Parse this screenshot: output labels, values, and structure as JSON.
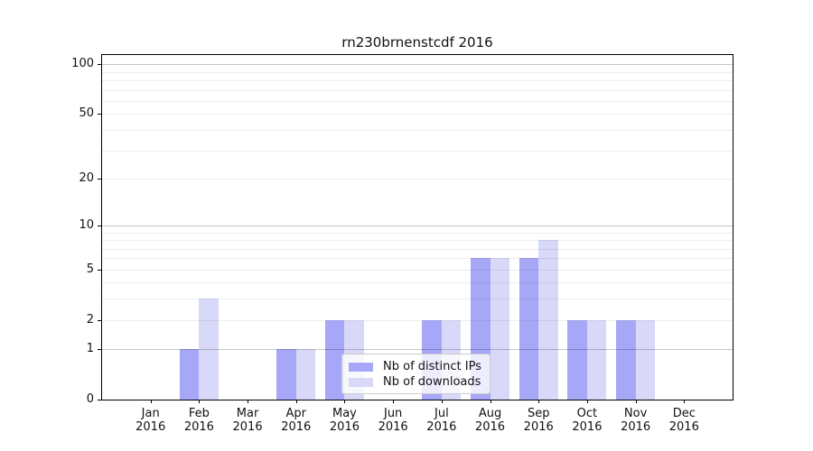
{
  "chart_data": {
    "type": "bar",
    "title": "rn230brnenstcdf 2016",
    "categories": [
      "Jan",
      "Feb",
      "Mar",
      "Apr",
      "May",
      "Jun",
      "Jul",
      "Aug",
      "Sep",
      "Oct",
      "Nov",
      "Dec"
    ],
    "category_year": "2016",
    "series": [
      {
        "name": "Nb of distinct IPs",
        "color": "#a7a7f7",
        "values": [
          0,
          1,
          0,
          1,
          2,
          0,
          2,
          6,
          6,
          2,
          2,
          0
        ]
      },
      {
        "name": "Nb of downloads",
        "color": "#d8d8f8",
        "values": [
          0,
          3,
          0,
          1,
          2,
          0,
          2,
          6,
          8,
          2,
          2,
          0
        ]
      }
    ],
    "y_scale": "log1p",
    "ylim": [
      0,
      113
    ],
    "y_ticks": [
      0,
      1,
      2,
      5,
      10,
      20,
      50,
      100
    ],
    "grid": {
      "on": true,
      "major_values": [
        1,
        10,
        100
      ],
      "minor_values": [
        2,
        3,
        4,
        5,
        6,
        7,
        8,
        9,
        20,
        30,
        40,
        50,
        60,
        70,
        80,
        90
      ]
    },
    "legend_position": "inside-bottom-center",
    "colors": {
      "axis": "#000000",
      "text": "#111111",
      "grid_major": "#c8c8c8",
      "grid_minor": "#ececec",
      "background": "#ffffff"
    }
  }
}
